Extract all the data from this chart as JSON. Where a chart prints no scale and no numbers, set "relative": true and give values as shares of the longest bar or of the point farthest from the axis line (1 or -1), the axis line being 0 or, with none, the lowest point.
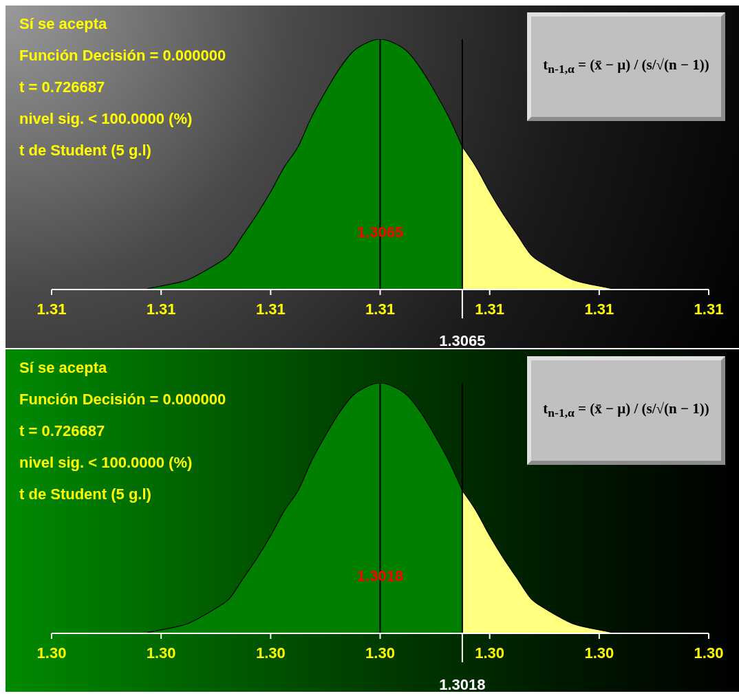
{
  "chart_data": [
    {
      "type": "area",
      "relative": true,
      "annotations": [
        "Sí se acepta",
        "Función Decisión = 0.000000",
        "t = 0.726687",
        "nivel sig. < 100.0000 (%)",
        "t de Student (5 g.l)",
        "t$_{n-1,α}$ = (x̄ − μ) / (s/√(n − 1))"
      ],
      "categories": [
        "1.31",
        null,
        null,
        null,
        null,
        null,
        null,
        null,
        "1.31",
        null,
        null,
        null,
        null,
        null,
        null,
        null,
        "1.31",
        null,
        null,
        null,
        null,
        null,
        null,
        null,
        "1.31",
        null,
        null,
        null,
        null,
        null,
        null,
        null,
        "1.31",
        null,
        null,
        null,
        null,
        null,
        null,
        null,
        "1.31",
        null,
        null,
        null,
        null,
        null,
        null,
        null,
        "1.31"
      ],
      "series": [
        {
          "color": "#007f00",
          "values": [
            null,
            null,
            null,
            null,
            null,
            null,
            null,
            0.003,
            0.014,
            0.025,
            0.04,
            0.068,
            0.1,
            0.14,
            0.22,
            0.3,
            0.39,
            0.49,
            0.57,
            0.69,
            0.79,
            0.88,
            0.95,
            0.985,
            1,
            0.985,
            0.95,
            0.88,
            0.79,
            0.69,
            0.57,
            null,
            null,
            null,
            null,
            null,
            null,
            null,
            null,
            null,
            null,
            null,
            null,
            null,
            null,
            null,
            null,
            null,
            null
          ]
        },
        {
          "color": "#ffff80",
          "values": [
            null,
            null,
            null,
            null,
            null,
            null,
            null,
            null,
            null,
            null,
            null,
            null,
            null,
            null,
            null,
            null,
            null,
            null,
            null,
            null,
            null,
            null,
            null,
            null,
            null,
            null,
            null,
            null,
            null,
            null,
            0.57,
            0.49,
            0.39,
            0.3,
            0.22,
            0.14,
            0.1,
            0.068,
            0.04,
            0.025,
            0.014,
            0.003,
            null,
            null,
            null,
            null,
            null,
            null,
            null
          ]
        }
      ],
      "ref_lines": [
        {
          "axis": "x",
          "label": "1.3065",
          "color": "#000000"
        },
        {
          "axis": "x",
          "label": "1.3065",
          "color": "#000000"
        }
      ]
    },
    {
      "type": "area",
      "relative": true,
      "annotations": [
        "Sí se acepta",
        "Función Decisión = 0.000000",
        "t = 0.726687",
        "nivel sig. < 100.0000 (%)",
        "t de Student (5 g.l)",
        "t$_{n-1,α}$ = (x̄ − μ) / (s/√(n − 1))"
      ],
      "categories": [
        "1.30",
        null,
        null,
        null,
        null,
        null,
        null,
        null,
        "1.30",
        null,
        null,
        null,
        null,
        null,
        null,
        null,
        "1.30",
        null,
        null,
        null,
        null,
        null,
        null,
        null,
        "1.30",
        null,
        null,
        null,
        null,
        null,
        null,
        null,
        "1.30",
        null,
        null,
        null,
        null,
        null,
        null,
        null,
        "1.30",
        null,
        null,
        null,
        null,
        null,
        null,
        null,
        "1.30"
      ],
      "series": [
        {
          "color": "#007f00",
          "values": [
            null,
            null,
            null,
            null,
            null,
            null,
            null,
            0.003,
            0.014,
            0.025,
            0.04,
            0.068,
            0.1,
            0.14,
            0.22,
            0.3,
            0.39,
            0.49,
            0.57,
            0.69,
            0.79,
            0.88,
            0.95,
            0.985,
            1,
            0.985,
            0.95,
            0.88,
            0.79,
            0.69,
            0.57,
            null,
            null,
            null,
            null,
            null,
            null,
            null,
            null,
            null,
            null,
            null,
            null,
            null,
            null,
            null,
            null,
            null,
            null
          ]
        },
        {
          "color": "#ffff80",
          "values": [
            null,
            null,
            null,
            null,
            null,
            null,
            null,
            null,
            null,
            null,
            null,
            null,
            null,
            null,
            null,
            null,
            null,
            null,
            null,
            null,
            null,
            null,
            null,
            null,
            null,
            null,
            null,
            null,
            null,
            null,
            0.57,
            0.49,
            0.39,
            0.3,
            0.22,
            0.14,
            0.1,
            0.068,
            0.04,
            0.025,
            0.014,
            0.003,
            null,
            null,
            null,
            null,
            null,
            null,
            null
          ]
        }
      ],
      "ref_lines": [
        {
          "axis": "x",
          "label": "1.3018",
          "color": "#000000"
        },
        {
          "axis": "x",
          "label": "1.3018",
          "color": "#000000"
        }
      ]
    }
  ]
}
